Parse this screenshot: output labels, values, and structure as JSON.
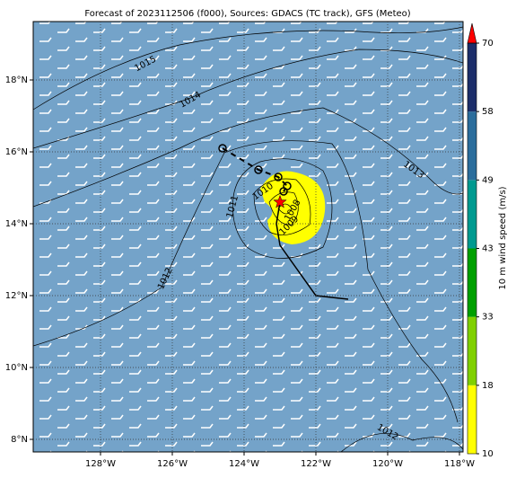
{
  "chart_data": {
    "type": "map",
    "title": "Forecast of 2023112506 (f000), Sources: GDACS (TC track), GFS (Meteo)",
    "xlim": [
      -129.875,
      -117.9
    ],
    "ylim": [
      7.65,
      19.625
    ],
    "xticks": [
      {
        "value": -128,
        "label": "128°W"
      },
      {
        "value": -126,
        "label": "126°W"
      },
      {
        "value": -124,
        "label": "124°W"
      },
      {
        "value": -122,
        "label": "122°W"
      },
      {
        "value": -120,
        "label": "120°W"
      },
      {
        "value": -118,
        "label": "118°W"
      }
    ],
    "yticks": [
      {
        "value": 8,
        "label": "8°N"
      },
      {
        "value": 10,
        "label": "10°N"
      },
      {
        "value": 12,
        "label": "12°N"
      },
      {
        "value": 14,
        "label": "14°N"
      },
      {
        "value": 16,
        "label": "16°N"
      },
      {
        "value": 18,
        "label": "18°N"
      }
    ],
    "grid": true,
    "past_track": {
      "lon": [
        -124.6,
        -123.6,
        -123.05,
        -122.8,
        -122.9
      ],
      "lat": [
        16.1,
        15.5,
        15.3,
        15.05,
        14.9
      ]
    },
    "forecast_track": {
      "lon": [
        -123.0,
        -123.1,
        -123.0,
        -122.0,
        -121.1
      ],
      "lat": [
        14.6,
        14.0,
        13.4,
        12.0,
        11.9
      ]
    },
    "center": {
      "lon": -123.0,
      "lat": 14.6,
      "color": "#ff0000"
    },
    "contour_labels": [
      "1015",
      "1014",
      "1013",
      "1012",
      "1012",
      "1011",
      "1010",
      "1009",
      "1008",
      "1012"
    ],
    "colorbar": {
      "label": "10 m wind speed (m/s)",
      "ticks": [
        10,
        18,
        33,
        43,
        49,
        58,
        70
      ],
      "colors": [
        "#ffff00",
        "#80d000",
        "#00a000",
        "#009a90",
        "#2b6d9c",
        "#1c2e6a"
      ],
      "extend_color": "#ff0000"
    }
  }
}
